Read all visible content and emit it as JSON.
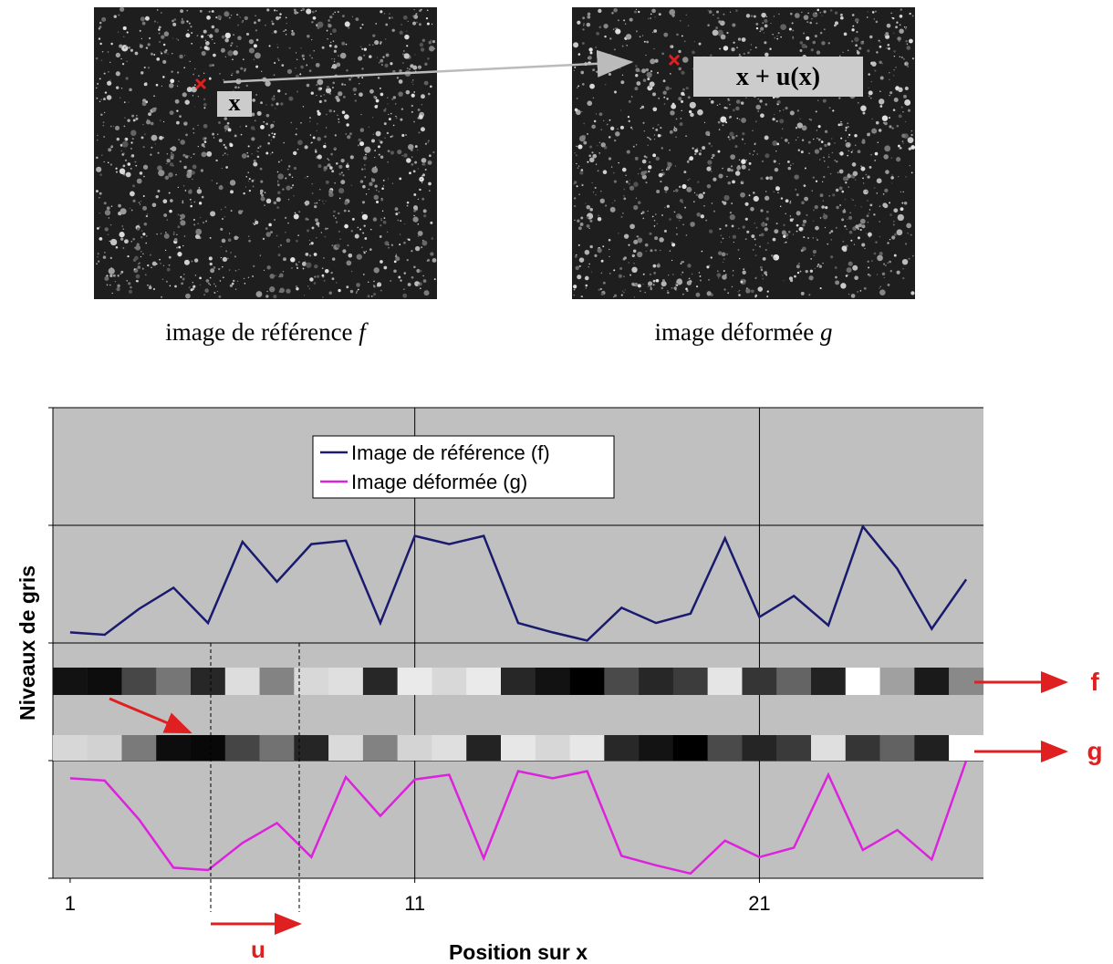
{
  "figure": {
    "reference_image": {
      "point_label": "x",
      "caption": "image de référence",
      "caption_symbol": "f"
    },
    "deformed_image": {
      "point_label": "x + u(x)",
      "caption": "image déformée",
      "caption_symbol": "g"
    }
  },
  "chart_data": {
    "type": "line",
    "xlabel": "Position sur x",
    "ylabel": "Niveaux de gris",
    "x": [
      1,
      2,
      3,
      4,
      5,
      6,
      7,
      8,
      9,
      10,
      11,
      12,
      13,
      14,
      15,
      16,
      17,
      18,
      19,
      20,
      21,
      22,
      23,
      24,
      25,
      26,
      27
    ],
    "series": [
      {
        "name": "Image de référence (f)",
        "color": "#1a1a6e",
        "values": [
          2.09,
          2.07,
          2.29,
          2.47,
          2.17,
          2.86,
          2.52,
          2.84,
          2.87,
          2.17,
          2.91,
          2.84,
          2.91,
          2.17,
          2.09,
          2.02,
          2.3,
          2.17,
          2.25,
          2.89,
          2.22,
          2.4,
          2.15,
          2.99,
          2.63,
          2.12,
          2.54
        ]
      },
      {
        "name": "Image déformée (g)",
        "color": "#dd22dd",
        "values": [
          0.85,
          0.83,
          0.5,
          0.09,
          0.07,
          0.3,
          0.47,
          0.18,
          0.86,
          0.53,
          0.84,
          0.88,
          0.17,
          0.91,
          0.85,
          0.91,
          0.19,
          0.11,
          0.04,
          0.32,
          0.18,
          0.26,
          0.88,
          0.24,
          0.41,
          0.16,
          1.0
        ]
      }
    ],
    "xlim": [
      0.5,
      27.5
    ],
    "xticks": [
      1,
      11,
      21
    ],
    "ylim": [
      0,
      4
    ],
    "yticks": [
      0,
      1,
      2,
      3,
      4
    ],
    "grid": true,
    "legend": "top-center",
    "annotations": {
      "f_strip": "f",
      "g_strip": "g",
      "shift": "u"
    }
  }
}
